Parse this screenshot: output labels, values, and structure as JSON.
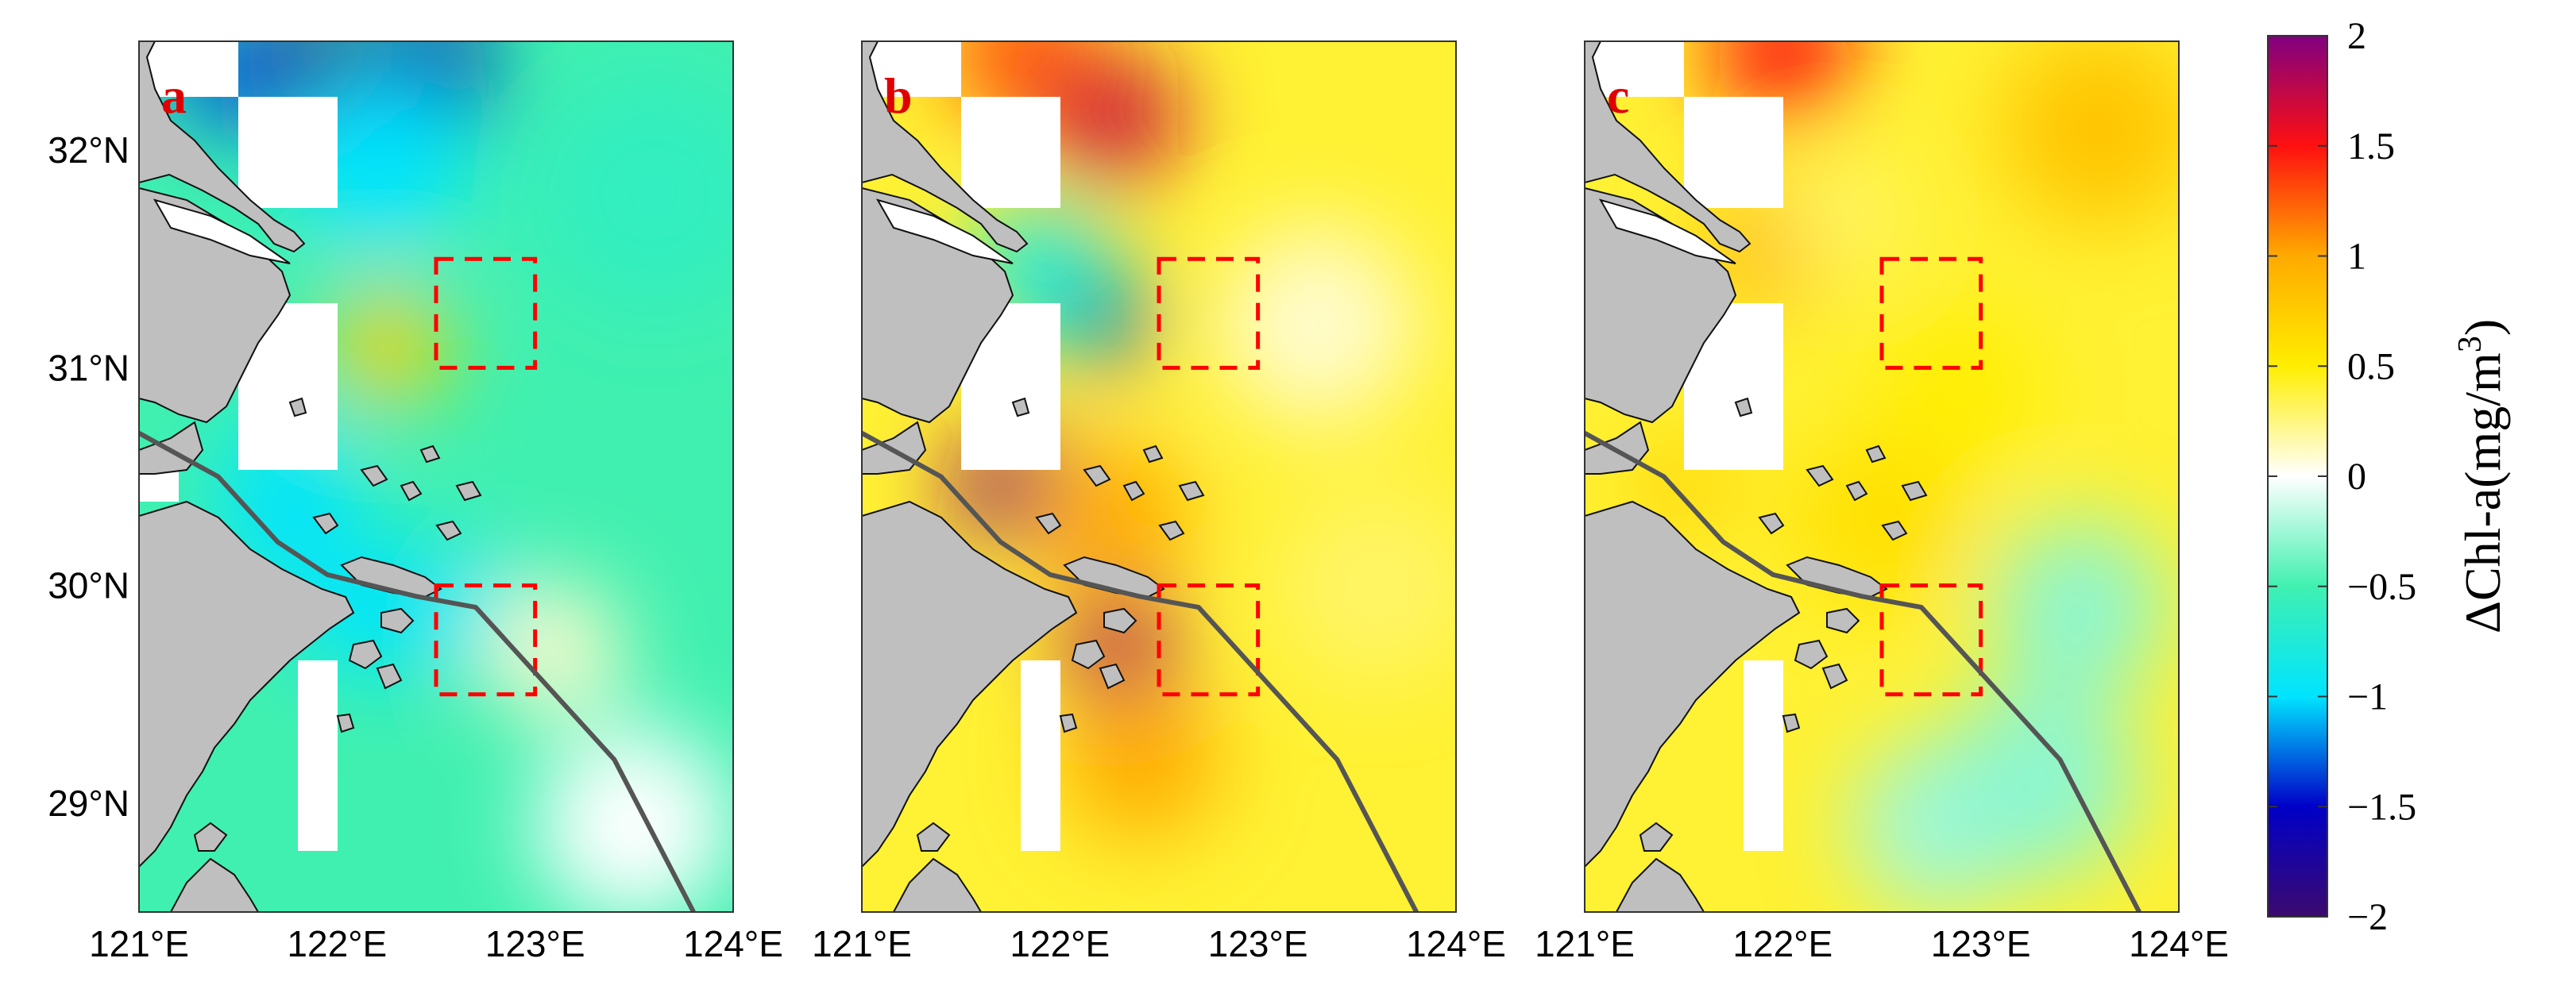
{
  "panels": [
    {
      "label": "a",
      "fields": [
        {
          "lon": 121.85,
          "lat": 32.35,
          "v": -1.9,
          "r": 0.35
        },
        {
          "lon": 121.45,
          "lat": 32.35,
          "v": -1.3,
          "r": 0.3
        },
        {
          "lon": 122.45,
          "lat": 32.35,
          "v": -1.6,
          "r": 0.35
        },
        {
          "lon": 122.2,
          "lat": 31.95,
          "v": -1.0,
          "r": 0.45
        },
        {
          "lon": 122.25,
          "lat": 31.1,
          "v": 0.7,
          "r": 0.3
        },
        {
          "lon": 121.75,
          "lat": 30.45,
          "v": -1.0,
          "r": 0.35
        },
        {
          "lon": 121.7,
          "lat": 30.2,
          "v": -1.0,
          "r": 0.25
        },
        {
          "lon": 122.15,
          "lat": 29.9,
          "v": -1.0,
          "r": 0.35
        },
        {
          "lon": 122.6,
          "lat": 29.9,
          "v": -0.9,
          "r": 0.35
        },
        {
          "lon": 123.1,
          "lat": 29.7,
          "v": 0.1,
          "r": 0.35
        },
        {
          "lon": 123.5,
          "lat": 28.9,
          "v": 0.0,
          "r": 0.5
        },
        {
          "lon": 123.6,
          "lat": 31.8,
          "v": -0.6,
          "r": 0.6
        }
      ]
    },
    {
      "label": "b",
      "fields": [
        {
          "lon": 122.25,
          "lat": 32.15,
          "v": 1.7,
          "r": 0.35
        },
        {
          "lon": 121.8,
          "lat": 32.45,
          "v": 1.3,
          "r": 0.35
        },
        {
          "lon": 122.2,
          "lat": 31.25,
          "v": -1.5,
          "r": 0.25
        },
        {
          "lon": 121.9,
          "lat": 31.45,
          "v": -0.8,
          "r": 0.35
        },
        {
          "lon": 121.75,
          "lat": 30.45,
          "v": 1.9,
          "r": 0.3
        },
        {
          "lon": 122.3,
          "lat": 29.7,
          "v": 1.8,
          "r": 0.3
        },
        {
          "lon": 122.25,
          "lat": 30.3,
          "v": 1.0,
          "r": 0.4
        },
        {
          "lon": 122.4,
          "lat": 29.2,
          "v": 1.0,
          "r": 0.4
        },
        {
          "lon": 123.3,
          "lat": 31.2,
          "v": 0.1,
          "r": 0.5
        },
        {
          "lon": 123.6,
          "lat": 30.0,
          "v": 0.3,
          "r": 0.5
        }
      ]
    },
    {
      "label": "c",
      "fields": [
        {
          "lon": 122.0,
          "lat": 32.45,
          "v": 1.5,
          "r": 0.35
        },
        {
          "lon": 121.9,
          "lat": 31.55,
          "v": 0.9,
          "r": 0.3
        },
        {
          "lon": 122.3,
          "lat": 31.7,
          "v": 0.3,
          "r": 0.3
        },
        {
          "lon": 123.5,
          "lat": 29.9,
          "v": -0.3,
          "r": 0.45
        },
        {
          "lon": 122.8,
          "lat": 28.9,
          "v": -0.25,
          "r": 0.45
        },
        {
          "lon": 123.3,
          "lat": 29.1,
          "v": -0.3,
          "r": 0.5
        },
        {
          "lon": 122.5,
          "lat": 30.3,
          "v": 0.6,
          "r": 0.45
        },
        {
          "lon": 121.5,
          "lat": 30.45,
          "v": 0.7,
          "r": 0.25
        },
        {
          "lon": 123.6,
          "lat": 32.1,
          "v": 0.8,
          "r": 0.5
        },
        {
          "lon": 122.9,
          "lat": 30.9,
          "v": 0.5,
          "r": 0.4
        }
      ]
    }
  ],
  "background_values": {
    "a": -0.5,
    "b": 0.4,
    "c": 0.4
  },
  "axes": {
    "lon_range": [
      121,
      124
    ],
    "lat_range": [
      28.5,
      32.5
    ],
    "x_ticks": [
      {
        "value": 121,
        "label": "121°E"
      },
      {
        "value": 122,
        "label": "122°E"
      },
      {
        "value": 123,
        "label": "123°E"
      },
      {
        "value": 124,
        "label": "124°E"
      }
    ],
    "y_ticks": [
      {
        "value": 32,
        "label": "32°N"
      },
      {
        "value": 31,
        "label": "31°N"
      },
      {
        "value": 30,
        "label": "30°N"
      },
      {
        "value": 29,
        "label": "29°N"
      }
    ]
  },
  "study_boxes": [
    {
      "lon": [
        122.5,
        123.0
      ],
      "lat": [
        31.0,
        31.5
      ]
    },
    {
      "lon": [
        122.5,
        123.0
      ],
      "lat": [
        29.5,
        30.0
      ]
    }
  ],
  "route_line": [
    [
      121.0,
      30.7
    ],
    [
      121.4,
      30.5
    ],
    [
      121.7,
      30.2
    ],
    [
      121.95,
      30.05
    ],
    [
      122.4,
      29.95
    ],
    [
      122.7,
      29.9
    ],
    [
      123.4,
      29.2
    ],
    [
      123.8,
      28.5
    ]
  ],
  "land_color": "#bfbfbf",
  "box_color": "#ff0000",
  "route_color": "#555555",
  "colorbar": {
    "title": "ΔChl-a(mg/m",
    "title_superscript": "3",
    "title_close": ")",
    "range": [
      -2,
      2
    ],
    "ticks": [
      {
        "value": 2,
        "label": "2"
      },
      {
        "value": 1.5,
        "label": "1.5"
      },
      {
        "value": 1,
        "label": "1"
      },
      {
        "value": 0.5,
        "label": "0.5"
      },
      {
        "value": 0,
        "label": "0"
      },
      {
        "value": -0.5,
        "label": "−0.5"
      },
      {
        "value": -1,
        "label": "−1"
      },
      {
        "value": -1.5,
        "label": "−1.5"
      },
      {
        "value": -2,
        "label": "−2"
      }
    ],
    "stops": [
      {
        "v": -2,
        "color": "#3c0a6e"
      },
      {
        "v": -1.5,
        "color": "#0000c8"
      },
      {
        "v": -1.0,
        "color": "#00e4ff"
      },
      {
        "v": -0.5,
        "color": "#40f0b0"
      },
      {
        "v": 0,
        "color": "#ffffff"
      },
      {
        "v": 0.5,
        "color": "#ffee00"
      },
      {
        "v": 1.0,
        "color": "#ffaa00"
      },
      {
        "v": 1.5,
        "color": "#ff1010"
      },
      {
        "v": 2,
        "color": "#800080"
      }
    ]
  }
}
